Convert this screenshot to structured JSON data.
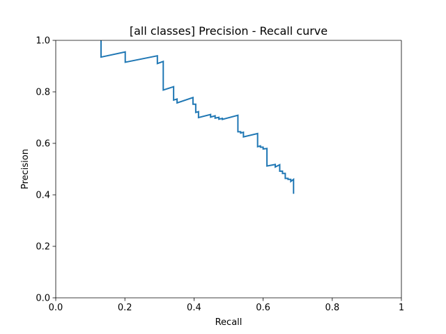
{
  "chart_data": {
    "type": "line",
    "title": "[all classes] Precision - Recall curve",
    "xlabel": "Recall",
    "ylabel": "Precision",
    "xlim": [
      0,
      1
    ],
    "ylim": [
      0,
      1
    ],
    "xticks": [
      0,
      0.2,
      0.4,
      0.6,
      0.8,
      1
    ],
    "xtick_labels": [
      "0.0",
      "0.2",
      "0.4",
      "0.6",
      "0.8",
      "1"
    ],
    "yticks": [
      0,
      0.2,
      0.4,
      0.6,
      0.8,
      1
    ],
    "ytick_labels": [
      "0.0",
      "0.2",
      "0.4",
      "0.6",
      "0.8",
      "1.0"
    ],
    "grid": false,
    "line_color": "#1f77b4",
    "series": [
      {
        "x": [
          0.131,
          0.131,
          0.201,
          0.201,
          0.294,
          0.294,
          0.311,
          0.311,
          0.341,
          0.341,
          0.351,
          0.351,
          0.397,
          0.397,
          0.405,
          0.405,
          0.413,
          0.413,
          0.448,
          0.448,
          0.461,
          0.461,
          0.472,
          0.472,
          0.482,
          0.482,
          0.527,
          0.527,
          0.535,
          0.535,
          0.543,
          0.543,
          0.584,
          0.584,
          0.592,
          0.592,
          0.6,
          0.6,
          0.611,
          0.611,
          0.635,
          0.635,
          0.648,
          0.648,
          0.656,
          0.656,
          0.664,
          0.664,
          0.672,
          0.672,
          0.68,
          0.68,
          0.688,
          0.688
        ],
        "y": [
          1.0,
          0.935,
          0.955,
          0.915,
          0.94,
          0.91,
          0.918,
          0.807,
          0.82,
          0.768,
          0.772,
          0.757,
          0.778,
          0.752,
          0.752,
          0.72,
          0.723,
          0.7,
          0.712,
          0.702,
          0.707,
          0.698,
          0.701,
          0.694,
          0.697,
          0.693,
          0.709,
          0.645,
          0.645,
          0.64,
          0.643,
          0.625,
          0.638,
          0.587,
          0.59,
          0.585,
          0.585,
          0.578,
          0.58,
          0.512,
          0.518,
          0.508,
          0.517,
          0.492,
          0.492,
          0.483,
          0.483,
          0.464,
          0.464,
          0.46,
          0.46,
          0.452,
          0.46,
          0.404
        ]
      }
    ]
  }
}
